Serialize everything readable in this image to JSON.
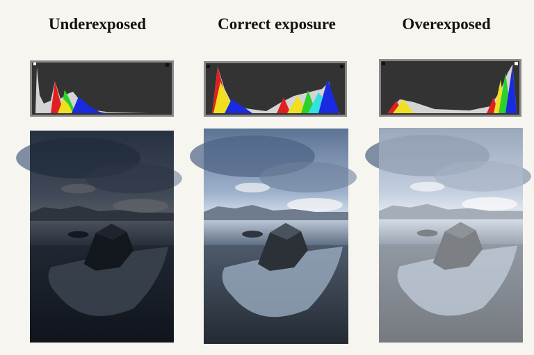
{
  "panels": [
    {
      "heading": "Underexposed"
    },
    {
      "heading": "Correct exposure"
    },
    {
      "heading": "Overexposed"
    }
  ]
}
